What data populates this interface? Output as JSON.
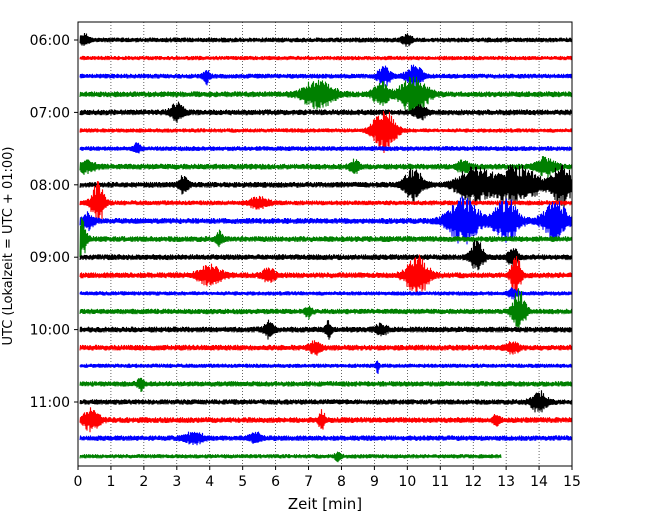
{
  "chart_data": {
    "type": "line",
    "title": "",
    "xlabel": "Zeit  [min]",
    "ylabel": "UTC (Lokalzeit = UTC + 01:00)",
    "xlim": [
      0,
      15
    ],
    "x_ticks": [
      "0",
      "1",
      "2",
      "3",
      "4",
      "5",
      "6",
      "7",
      "8",
      "9",
      "10",
      "11",
      "12",
      "13",
      "14",
      "15"
    ],
    "y_tick_labels": [
      "06:00",
      "07:00",
      "08:00",
      "09:00",
      "10:00",
      "11:00"
    ],
    "grid": "vertical dotted at each minute",
    "row_minutes": 15,
    "rows_start": "06:00",
    "colors": [
      "#000000",
      "#ff0000",
      "#0000ff",
      "#008000"
    ],
    "rows": [
      {
        "time": "06:00",
        "color": "#000000",
        "base_amp": 0.25,
        "end_min": 15,
        "events": [
          [
            0.2,
            0.5,
            0.15
          ],
          [
            10.0,
            0.6,
            0.15
          ]
        ]
      },
      {
        "time": "06:15",
        "color": "#ff0000",
        "base_amp": 0.22,
        "end_min": 15,
        "events": []
      },
      {
        "time": "06:30",
        "color": "#0000ff",
        "base_amp": 0.25,
        "end_min": 15,
        "events": [
          [
            3.9,
            0.7,
            0.1
          ],
          [
            9.3,
            0.9,
            0.2
          ],
          [
            10.2,
            1.2,
            0.25
          ]
        ]
      },
      {
        "time": "06:45",
        "color": "#008000",
        "base_amp": 0.3,
        "end_min": 15,
        "events": [
          [
            7.3,
            1.4,
            0.5
          ],
          [
            9.2,
            1.1,
            0.25
          ],
          [
            10.2,
            1.7,
            0.45
          ]
        ]
      },
      {
        "time": "07:00",
        "color": "#000000",
        "base_amp": 0.3,
        "end_min": 15,
        "events": [
          [
            3.0,
            0.9,
            0.2
          ],
          [
            10.4,
            0.6,
            0.2
          ]
        ]
      },
      {
        "time": "07:15",
        "color": "#ff0000",
        "base_amp": 0.22,
        "end_min": 15,
        "events": [
          [
            9.3,
            2.1,
            0.35
          ]
        ]
      },
      {
        "time": "07:30",
        "color": "#0000ff",
        "base_amp": 0.25,
        "end_min": 15,
        "events": [
          [
            1.8,
            0.5,
            0.1
          ]
        ]
      },
      {
        "time": "07:45",
        "color": "#008000",
        "base_amp": 0.3,
        "end_min": 15,
        "events": [
          [
            0.2,
            0.6,
            0.3
          ],
          [
            8.4,
            0.7,
            0.15
          ],
          [
            11.7,
            0.6,
            0.2
          ],
          [
            14.2,
            0.9,
            0.3
          ]
        ]
      },
      {
        "time": "08:00",
        "color": "#000000",
        "base_amp": 0.3,
        "end_min": 15,
        "events": [
          [
            3.2,
            0.8,
            0.15
          ],
          [
            10.2,
            1.6,
            0.3
          ],
          [
            12.0,
            2.0,
            0.5
          ],
          [
            13.3,
            1.9,
            0.7
          ],
          [
            14.7,
            2.3,
            0.3
          ]
        ]
      },
      {
        "time": "08:15",
        "color": "#ff0000",
        "base_amp": 0.25,
        "end_min": 15,
        "events": [
          [
            0.6,
            2.0,
            0.2
          ],
          [
            5.5,
            0.6,
            0.3
          ]
        ]
      },
      {
        "time": "08:30",
        "color": "#0000ff",
        "base_amp": 0.3,
        "end_min": 15,
        "events": [
          [
            0.3,
            0.8,
            0.2
          ],
          [
            11.7,
            2.2,
            0.5
          ],
          [
            13.0,
            2.1,
            0.4
          ],
          [
            14.5,
            1.8,
            0.4
          ]
        ]
      },
      {
        "time": "08:45",
        "color": "#008000",
        "base_amp": 0.3,
        "end_min": 15,
        "events": [
          [
            0.1,
            2.0,
            0.15
          ],
          [
            4.3,
            0.8,
            0.1
          ]
        ]
      },
      {
        "time": "09:00",
        "color": "#000000",
        "base_amp": 0.3,
        "end_min": 15,
        "events": [
          [
            12.1,
            1.7,
            0.2
          ],
          [
            13.2,
            1.0,
            0.15
          ]
        ]
      },
      {
        "time": "09:15",
        "color": "#ff0000",
        "base_amp": 0.3,
        "end_min": 15,
        "events": [
          [
            4.0,
            0.9,
            0.4
          ],
          [
            5.8,
            0.7,
            0.2
          ],
          [
            10.3,
            1.9,
            0.35
          ],
          [
            13.3,
            2.0,
            0.15
          ]
        ]
      },
      {
        "time": "09:30",
        "color": "#0000ff",
        "base_amp": 0.22,
        "end_min": 15,
        "events": [
          [
            13.2,
            0.5,
            0.15
          ]
        ]
      },
      {
        "time": "09:45",
        "color": "#008000",
        "base_amp": 0.28,
        "end_min": 15,
        "events": [
          [
            7.0,
            0.6,
            0.1
          ],
          [
            13.4,
            2.1,
            0.2
          ]
        ]
      },
      {
        "time": "10:00",
        "color": "#000000",
        "base_amp": 0.3,
        "end_min": 15,
        "events": [
          [
            5.8,
            0.8,
            0.15
          ],
          [
            7.6,
            0.8,
            0.1
          ],
          [
            9.2,
            0.5,
            0.2
          ]
        ]
      },
      {
        "time": "10:15",
        "color": "#ff0000",
        "base_amp": 0.3,
        "end_min": 15,
        "events": [
          [
            7.2,
            0.6,
            0.2
          ],
          [
            13.2,
            0.5,
            0.2
          ]
        ]
      },
      {
        "time": "10:30",
        "color": "#0000ff",
        "base_amp": 0.22,
        "end_min": 15,
        "events": [
          [
            9.1,
            0.7,
            0.05
          ]
        ]
      },
      {
        "time": "10:45",
        "color": "#008000",
        "base_amp": 0.28,
        "end_min": 15,
        "events": [
          [
            1.9,
            0.6,
            0.1
          ]
        ]
      },
      {
        "time": "11:00",
        "color": "#000000",
        "base_amp": 0.28,
        "end_min": 15,
        "events": [
          [
            14.0,
            1.0,
            0.25
          ]
        ]
      },
      {
        "time": "11:15",
        "color": "#ff0000",
        "base_amp": 0.3,
        "end_min": 15,
        "events": [
          [
            0.4,
            1.1,
            0.25
          ],
          [
            7.4,
            1.0,
            0.1
          ],
          [
            12.7,
            0.6,
            0.1
          ]
        ]
      },
      {
        "time": "11:30",
        "color": "#0000ff",
        "base_amp": 0.28,
        "end_min": 15,
        "events": [
          [
            3.5,
            0.6,
            0.3
          ],
          [
            5.4,
            0.5,
            0.2
          ]
        ]
      },
      {
        "time": "11:45",
        "color": "#008000",
        "base_amp": 0.22,
        "end_min": 12.85,
        "events": [
          [
            7.9,
            0.5,
            0.1
          ]
        ]
      }
    ]
  }
}
